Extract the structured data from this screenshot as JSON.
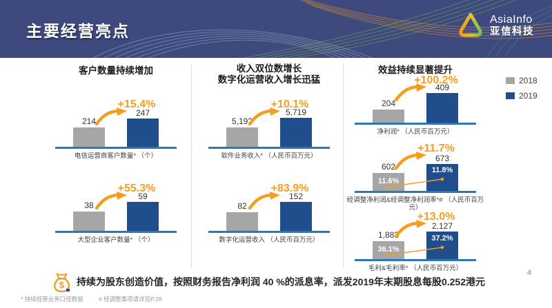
{
  "header": {
    "title": "主要经营亮点",
    "logo": {
      "name_en": "AsiaInfo",
      "name_zh": "亚信科技"
    }
  },
  "columns": [
    {
      "title_lines": [
        "客户数量持续增加"
      ]
    },
    {
      "title_lines": [
        "收入双位数增长",
        "数字化运营收入增长迅猛"
      ]
    },
    {
      "title_lines": [
        "效益持续显著提升"
      ]
    }
  ],
  "legend": {
    "items": [
      {
        "label": "2018",
        "color": "#A6A6A6"
      },
      {
        "label": "2019",
        "color": "#1F4E8B"
      }
    ]
  },
  "chart_data": [
    {
      "id": "telecom-operator-customers",
      "type": "bar",
      "categories": [
        "2018",
        "2019"
      ],
      "values": [
        214,
        247
      ],
      "value_labels": [
        "214",
        "247"
      ],
      "growth_label": "+15.4%",
      "caption": "电信运营商客户数量* （个）"
    },
    {
      "id": "large-enterprise-customers",
      "type": "bar",
      "categories": [
        "2018",
        "2019"
      ],
      "values": [
        38,
        59
      ],
      "value_labels": [
        "38",
        "59"
      ],
      "growth_label": "+55.3%",
      "caption": "大型企业客户数量* （个）"
    },
    {
      "id": "software-business-revenue",
      "type": "bar",
      "categories": [
        "2018",
        "2019"
      ],
      "values": [
        5192,
        5719
      ],
      "value_labels": [
        "5,192",
        "5,719"
      ],
      "growth_label": "+10.1%",
      "caption": "软件业务收入* （人民币百万元）"
    },
    {
      "id": "digital-operation-revenue",
      "type": "bar",
      "categories": [
        "2018",
        "2019"
      ],
      "values": [
        82,
        152
      ],
      "value_labels": [
        "82",
        "152"
      ],
      "growth_label": "+83.9%",
      "caption": "数字化运营收入 （人民币百万元）"
    },
    {
      "id": "net-profit",
      "type": "bar",
      "categories": [
        "2018",
        "2019"
      ],
      "values": [
        204,
        409
      ],
      "value_labels": [
        "204",
        "409"
      ],
      "growth_label": "+100.2%",
      "caption": "净利润* （人民币百万元）"
    },
    {
      "id": "adjusted-net-profit-and-margin",
      "type": "bar",
      "categories": [
        "2018",
        "2019"
      ],
      "values": [
        602,
        673
      ],
      "value_labels": [
        "602",
        "673"
      ],
      "growth_label": "+11.7%",
      "rate_labels": [
        "11.6%",
        "11.8%"
      ],
      "caption": "经调整净利润&经调整净利润率*# （人民币百万元）"
    },
    {
      "id": "gross-profit-and-margin",
      "type": "bar",
      "categories": [
        "2018",
        "2019"
      ],
      "values": [
        1883,
        2127
      ],
      "value_labels": [
        "1,883",
        "2,127"
      ],
      "growth_label": "+13.0%",
      "rate_labels": [
        "36.1%",
        "37.2%"
      ],
      "caption": "毛利&毛利率* （人民币百万元）"
    }
  ],
  "footer": {
    "note": "持续为股东创造价值，按照财务报告净利润 40 %的派息率，派发2019年末期股息每股0.252港元",
    "footnotes": [
      "*  持续经营业务口径数据",
      "#  经调整事项请详见P.29"
    ],
    "page": "4"
  },
  "colors": {
    "header_bg": "#3E4A7E",
    "bar_2018": "#A6A6A6",
    "bar_2019": "#1F4E8B",
    "axis": "#2E75B6",
    "accent_orange": "#F69D1D"
  }
}
